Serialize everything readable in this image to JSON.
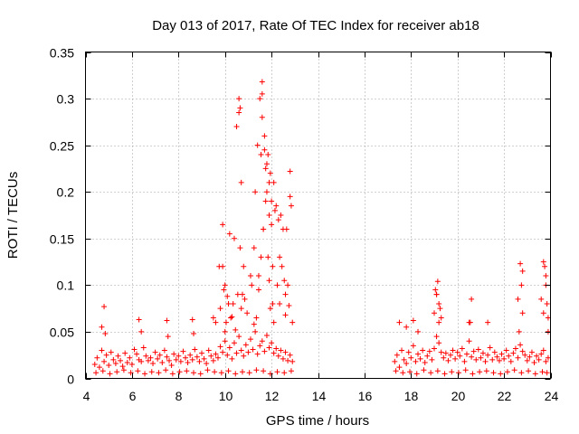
{
  "chart_data": {
    "type": "scatter",
    "title": "Day 013 of 2017, Rate Of TEC Index for receiver ab18",
    "xlabel": "GPS time / hours",
    "ylabel": "ROTI / TECUs",
    "xlim": [
      4,
      24
    ],
    "ylim": [
      0,
      0.35
    ],
    "xticks": [
      "4",
      "6",
      "8",
      "10",
      "12",
      "14",
      "16",
      "18",
      "20",
      "22",
      "24"
    ],
    "yticks": [
      "0",
      "0.05",
      "0.1",
      "0.15",
      "0.2",
      "0.25",
      "0.3",
      "0.35"
    ],
    "grid": true,
    "marker": "plus",
    "color": "#ff0000",
    "series": [
      {
        "x": [
          4.4,
          4.5,
          4.6,
          4.7,
          4.8,
          4.9,
          5.0,
          5.1,
          5.2,
          5.3,
          5.4,
          5.5,
          5.6,
          5.7,
          5.8,
          5.9,
          6.0,
          6.1,
          6.2,
          6.3,
          6.4,
          6.5,
          6.6,
          6.7,
          6.8,
          6.9,
          7.0,
          7.1,
          7.2,
          7.3,
          7.4,
          7.5,
          7.6,
          7.7,
          7.8,
          7.9,
          8.0,
          8.1,
          8.2,
          8.3,
          8.4,
          8.5,
          8.6,
          8.7,
          8.8,
          8.9,
          9.0,
          9.1,
          9.2,
          9.3,
          9.4,
          9.5,
          9.6,
          9.7,
          9.8,
          9.9,
          10.0,
          10.1,
          10.2,
          10.3,
          10.4,
          10.5,
          10.6,
          10.7,
          10.8,
          10.9,
          11.0,
          11.1,
          11.2,
          11.3,
          11.4,
          11.5,
          11.6,
          11.7,
          11.8,
          11.9,
          12.0,
          12.1,
          12.2,
          12.3,
          12.4,
          12.5,
          12.6,
          12.7,
          12.8,
          12.9,
          4.45,
          4.75,
          5.05,
          5.35,
          5.65,
          5.95,
          6.25,
          6.55,
          6.85,
          7.15,
          7.45,
          7.75,
          8.05,
          8.35,
          8.65,
          8.95,
          9.25,
          9.55,
          9.85,
          10.15,
          10.45,
          10.75,
          11.05,
          11.35,
          11.65,
          11.95,
          12.25,
          12.55,
          12.85,
          4.8,
          6.3,
          7.5,
          8.6,
          9.5,
          9.9,
          10.0,
          10.2,
          10.4,
          10.5,
          10.6,
          10.7,
          10.8,
          11.3,
          11.4,
          11.5,
          11.6,
          11.6,
          11.7,
          11.8,
          11.9,
          12.0,
          12.1,
          12.3,
          12.5,
          12.8,
          12.8,
          4.7,
          4.85,
          6.4,
          7.55,
          8.65,
          9.6,
          9.75,
          9.8,
          9.95,
          10.05,
          10.25,
          10.35,
          10.55,
          10.65,
          10.85,
          10.95,
          11.15,
          11.25,
          11.45,
          11.55,
          11.65,
          11.75,
          11.85,
          11.95,
          12.05,
          12.15,
          12.25,
          12.35,
          12.45,
          12.6,
          12.7,
          12.9,
          10.6,
          10.65,
          11.6,
          11.65,
          11.7,
          11.75,
          11.8,
          11.85,
          11.9,
          12.0,
          12.2,
          12.4,
          12.55,
          12.65,
          12.85,
          10.1,
          10.3,
          10.7,
          11.1,
          11.35,
          11.55,
          11.9,
          12.05,
          12.35,
          12.75,
          9.9,
          10.0,
          10.15,
          10.45,
          10.75,
          11.25,
          11.45,
          11.95,
          12.1,
          12.6,
          17.3,
          17.4,
          17.5,
          17.6,
          17.7,
          17.8,
          17.9,
          18.0,
          18.1,
          18.2,
          18.3,
          18.4,
          18.5,
          18.6,
          18.7,
          18.8,
          18.9,
          19.0,
          19.1,
          19.2,
          19.3,
          19.4,
          19.5,
          19.6,
          19.7,
          19.8,
          19.9,
          20.0,
          20.1,
          20.2,
          20.3,
          20.4,
          20.5,
          20.6,
          20.7,
          20.8,
          20.9,
          21.0,
          21.1,
          21.2,
          21.3,
          21.4,
          21.5,
          21.6,
          21.7,
          21.8,
          21.9,
          22.0,
          22.1,
          22.2,
          22.3,
          22.4,
          22.5,
          22.6,
          22.7,
          22.8,
          22.9,
          23.0,
          23.1,
          23.2,
          23.3,
          23.4,
          23.5,
          23.6,
          23.7,
          23.8,
          23.9,
          17.35,
          17.65,
          17.95,
          18.25,
          18.55,
          18.85,
          19.15,
          19.45,
          19.75,
          20.05,
          20.35,
          20.65,
          20.95,
          21.25,
          21.55,
          21.85,
          22.15,
          22.45,
          22.75,
          23.05,
          23.35,
          23.65,
          23.85,
          17.5,
          17.8,
          18.1,
          18.3,
          19.0,
          19.1,
          19.15,
          19.2,
          19.25,
          19.3,
          20.5,
          20.6,
          21.3,
          22.6,
          22.7,
          22.75,
          22.8,
          23.6,
          23.7,
          23.75,
          23.8,
          23.85,
          23.9,
          19.05,
          19.1,
          19.2,
          20.55,
          22.65,
          22.8,
          23.7,
          23.8,
          23.9
        ],
        "y": [
          0.015,
          0.022,
          0.012,
          0.03,
          0.018,
          0.025,
          0.014,
          0.028,
          0.02,
          0.016,
          0.024,
          0.019,
          0.013,
          0.027,
          0.017,
          0.022,
          0.015,
          0.031,
          0.026,
          0.02,
          0.018,
          0.033,
          0.024,
          0.019,
          0.022,
          0.016,
          0.028,
          0.021,
          0.025,
          0.017,
          0.03,
          0.023,
          0.019,
          0.014,
          0.026,
          0.02,
          0.024,
          0.018,
          0.029,
          0.022,
          0.017,
          0.025,
          0.02,
          0.031,
          0.023,
          0.018,
          0.027,
          0.021,
          0.016,
          0.03,
          0.024,
          0.019,
          0.026,
          0.022,
          0.034,
          0.028,
          0.04,
          0.025,
          0.033,
          0.021,
          0.038,
          0.027,
          0.045,
          0.03,
          0.024,
          0.036,
          0.028,
          0.042,
          0.031,
          0.05,
          0.026,
          0.035,
          0.04,
          0.029,
          0.046,
          0.033,
          0.038,
          0.027,
          0.032,
          0.024,
          0.03,
          0.021,
          0.028,
          0.019,
          0.025,
          0.018,
          0.006,
          0.008,
          0.005,
          0.007,
          0.009,
          0.006,
          0.008,
          0.005,
          0.007,
          0.006,
          0.009,
          0.005,
          0.007,
          0.008,
          0.006,
          0.005,
          0.009,
          0.007,
          0.006,
          0.008,
          0.005,
          0.007,
          0.006,
          0.009,
          0.008,
          0.005,
          0.007,
          0.006,
          0.008,
          0.077,
          0.063,
          0.062,
          0.063,
          0.065,
          0.165,
          0.1,
          0.155,
          0.15,
          0.27,
          0.3,
          0.21,
          0.12,
          0.2,
          0.25,
          0.3,
          0.318,
          0.28,
          0.26,
          0.2,
          0.175,
          0.19,
          0.21,
          0.17,
          0.16,
          0.195,
          0.222,
          0.055,
          0.048,
          0.05,
          0.045,
          0.048,
          0.06,
          0.12,
          0.075,
          0.095,
          0.06,
          0.065,
          0.08,
          0.09,
          0.14,
          0.085,
          0.07,
          0.1,
          0.14,
          0.11,
          0.24,
          0.16,
          0.19,
          0.13,
          0.22,
          0.12,
          0.18,
          0.1,
          0.08,
          0.12,
          0.09,
          0.1,
          0.06,
          0.285,
          0.29,
          0.305,
          0.16,
          0.245,
          0.225,
          0.23,
          0.24,
          0.21,
          0.165,
          0.185,
          0.175,
          0.105,
          0.16,
          0.185,
          0.088,
          0.066,
          0.075,
          0.11,
          0.065,
          0.13,
          0.105,
          0.08,
          0.13,
          0.078,
          0.12,
          0.05,
          0.08,
          0.052,
          0.09,
          0.058,
          0.095,
          0.075,
          0.06,
          0.068,
          0.018,
          0.025,
          0.012,
          0.03,
          0.02,
          0.016,
          0.028,
          0.022,
          0.035,
          0.018,
          0.026,
          0.021,
          0.03,
          0.017,
          0.024,
          0.029,
          0.02,
          0.032,
          0.045,
          0.038,
          0.028,
          0.022,
          0.027,
          0.019,
          0.025,
          0.03,
          0.021,
          0.028,
          0.024,
          0.032,
          0.018,
          0.026,
          0.04,
          0.023,
          0.029,
          0.02,
          0.031,
          0.022,
          0.027,
          0.018,
          0.025,
          0.033,
          0.02,
          0.028,
          0.023,
          0.019,
          0.026,
          0.021,
          0.03,
          0.024,
          0.018,
          0.027,
          0.032,
          0.022,
          0.036,
          0.029,
          0.025,
          0.019,
          0.023,
          0.028,
          0.017,
          0.024,
          0.02,
          0.026,
          0.03,
          0.018,
          0.022,
          0.008,
          0.006,
          0.007,
          0.005,
          0.009,
          0.006,
          0.008,
          0.005,
          0.007,
          0.006,
          0.009,
          0.005,
          0.007,
          0.008,
          0.006,
          0.005,
          0.007,
          0.009,
          0.006,
          0.008,
          0.005,
          0.007,
          0.006,
          0.06,
          0.055,
          0.062,
          0.05,
          0.07,
          0.09,
          0.104,
          0.08,
          0.075,
          0.065,
          0.06,
          0.085,
          0.06,
          0.085,
          0.123,
          0.1,
          0.07,
          0.085,
          0.125,
          0.12,
          0.1,
          0.08,
          0.05,
          0.095,
          0.09,
          0.06,
          0.06,
          0.05,
          0.115,
          0.07,
          0.11,
          0.065
        ]
      }
    ]
  }
}
